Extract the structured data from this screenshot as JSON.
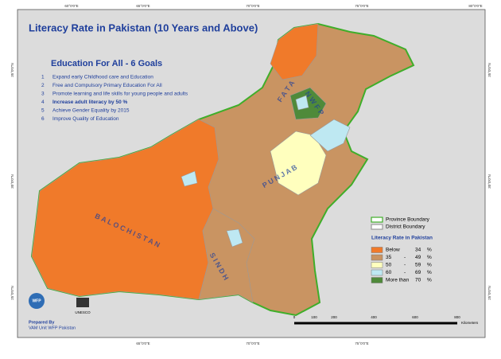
{
  "header": {
    "title": "Literacy Rate in Pakistan  (10 Years and Above)"
  },
  "goals": {
    "heading": "Education For All - 6 Goals",
    "items": [
      {
        "number": "1",
        "text": "Expand early Childhood care and Education"
      },
      {
        "number": "2",
        "text": "Free and Compulsory Primary Education For All"
      },
      {
        "number": "3",
        "text": "Promote learning and life skills for young people and adults"
      },
      {
        "number": "4",
        "text": "Increase adult literacy  by 50 %"
      },
      {
        "number": "5",
        "text": "Achieve Gender Equality by 2015"
      },
      {
        "number": "6",
        "text": "Improve Quality of Education"
      }
    ]
  },
  "coordinates": {
    "top": [
      "60°0'0\"E",
      "65°0'0\"E",
      "70°0'0\"E",
      "75°0'0\"E",
      "80°0'0\"E"
    ],
    "bottom": [
      "65°0'0\"E",
      "70°0'0\"E",
      "75°0'0\"E"
    ],
    "side": [
      "35°0'0\"N",
      "30°0'0\"N",
      "25°0'0\"N"
    ]
  },
  "provinces": [
    "F A T A",
    "N W F P",
    "P U N J A B",
    "B A L O C H I S T A N",
    "S I N D H"
  ],
  "legend": {
    "boundaries": [
      {
        "label": "Province Boundary",
        "color": "#3fae2a"
      },
      {
        "label": "District Boundary",
        "color": "#9a9a9a"
      }
    ],
    "title": "Literacy Rate in Pakistan",
    "classes": [
      {
        "from": "Below",
        "to": "34",
        "unit": "%",
        "color": "#f07a2a"
      },
      {
        "from": "35",
        "dash": "-",
        "to": "49",
        "unit": "%",
        "color": "#c99462"
      },
      {
        "from": "50",
        "dash": "-",
        "to": "59",
        "unit": "%",
        "color": "#ffffbe"
      },
      {
        "from": "60",
        "dash": "-",
        "to": "69",
        "unit": "%",
        "color": "#bee8f2"
      },
      {
        "from": "More than",
        "to": "70",
        "unit": "%",
        "color": "#4f8a3a"
      }
    ]
  },
  "scale": {
    "ticks": [
      "0",
      "100",
      "200",
      "400",
      "600",
      "800"
    ],
    "unit": "Kilometers"
  },
  "footer": {
    "logo_wfp": "WFP",
    "prepared": "Prepared By",
    "unit": "VAM Unit WFP Pakistan",
    "unesco": "UNESCO"
  }
}
